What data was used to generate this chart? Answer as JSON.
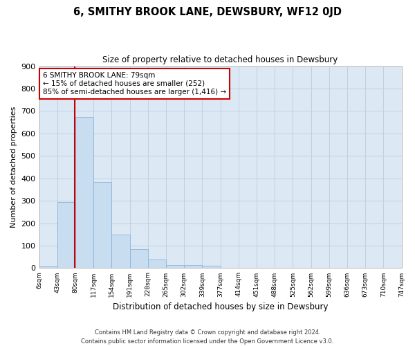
{
  "title": "6, SMITHY BROOK LANE, DEWSBURY, WF12 0JD",
  "subtitle": "Size of property relative to detached houses in Dewsbury",
  "xlabel": "Distribution of detached houses by size in Dewsbury",
  "ylabel": "Number of detached properties",
  "footnote1": "Contains HM Land Registry data © Crown copyright and database right 2024.",
  "footnote2": "Contains public sector information licensed under the Open Government Licence v3.0.",
  "bin_labels": [
    "6sqm",
    "43sqm",
    "80sqm",
    "117sqm",
    "154sqm",
    "191sqm",
    "228sqm",
    "265sqm",
    "302sqm",
    "339sqm",
    "377sqm",
    "414sqm",
    "451sqm",
    "488sqm",
    "525sqm",
    "562sqm",
    "599sqm",
    "636sqm",
    "673sqm",
    "710sqm",
    "747sqm"
  ],
  "bar_values": [
    8,
    293,
    675,
    385,
    150,
    85,
    37,
    13,
    13,
    11,
    0,
    0,
    0,
    0,
    0,
    0,
    0,
    0,
    0,
    0
  ],
  "bar_color": "#c9ddf0",
  "bar_edge_color": "#8ab4d8",
  "vline_x": 79,
  "vline_color": "#cc0000",
  "ylim": [
    0,
    900
  ],
  "yticks": [
    0,
    100,
    200,
    300,
    400,
    500,
    600,
    700,
    800,
    900
  ],
  "annotation_title": "6 SMITHY BROOK LANE: 79sqm",
  "annotation_line1": "← 15% of detached houses are smaller (252)",
  "annotation_line2": "85% of semi-detached houses are larger (1,416) →",
  "annotation_box_color": "#ffffff",
  "annotation_box_edge": "#cc0000",
  "grid_color": "#c0d0e0",
  "background_color": "#ffffff",
  "plot_bg_color": "#dce9f5",
  "title_fontsize": 11,
  "subtitle_fontsize": 9
}
